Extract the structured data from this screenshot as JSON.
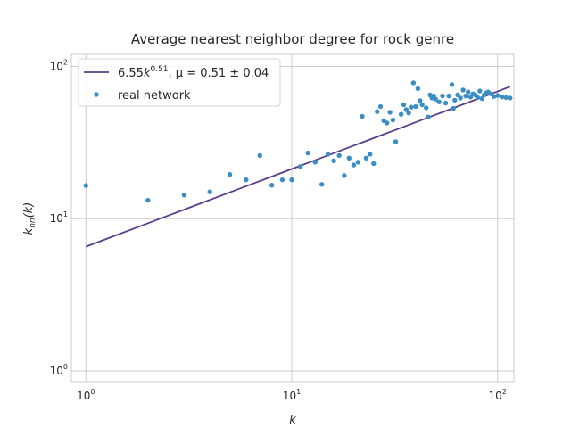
{
  "chart_data": {
    "type": "scatter",
    "title": "Average nearest neighbor degree for rock genre",
    "xlabel": "k",
    "ylabel": "k_nn(k)",
    "xscale": "log",
    "yscale": "log",
    "xlim": [
      0.85,
      120
    ],
    "ylim": [
      0.85,
      120
    ],
    "grid": true,
    "legend_position": "top-left",
    "x_ticks": [
      {
        "value": 1,
        "base": "10",
        "exp": "0"
      },
      {
        "value": 10,
        "base": "10",
        "exp": "1"
      },
      {
        "value": 100,
        "base": "10",
        "exp": "2"
      }
    ],
    "y_ticks": [
      {
        "value": 1,
        "base": "10",
        "exp": "0"
      },
      {
        "value": 10,
        "base": "10",
        "exp": "1"
      },
      {
        "value": 100,
        "base": "10",
        "exp": "2"
      }
    ],
    "series": [
      {
        "name": "real network",
        "kind": "scatter",
        "color": "#3a8ec3",
        "points": [
          [
            1,
            16.5
          ],
          [
            2,
            13.2
          ],
          [
            3,
            14.3
          ],
          [
            4,
            15.0
          ],
          [
            5,
            19.5
          ],
          [
            6,
            18.0
          ],
          [
            7,
            26.0
          ],
          [
            8,
            16.6
          ],
          [
            9,
            18.0
          ],
          [
            10,
            18.0
          ],
          [
            11,
            22.0
          ],
          [
            12,
            27.0
          ],
          [
            13,
            23.5
          ],
          [
            14,
            16.8
          ],
          [
            15,
            26.5
          ],
          [
            16,
            24.0
          ],
          [
            17,
            26.0
          ],
          [
            18,
            19.2
          ],
          [
            19,
            25.0
          ],
          [
            20,
            22.5
          ],
          [
            21,
            23.5
          ],
          [
            22,
            47.0
          ],
          [
            23,
            25.0
          ],
          [
            24,
            26.5
          ],
          [
            25,
            23.0
          ],
          [
            26,
            50.5
          ],
          [
            27,
            54.5
          ],
          [
            28,
            44.0
          ],
          [
            29,
            42.5
          ],
          [
            30,
            50.0
          ],
          [
            31,
            44.5
          ],
          [
            32,
            32.0
          ],
          [
            34,
            48.5
          ],
          [
            35,
            56.0
          ],
          [
            36,
            52.0
          ],
          [
            37,
            49.5
          ],
          [
            38,
            54.0
          ],
          [
            39,
            78.0
          ],
          [
            40,
            54.5
          ],
          [
            41,
            71.5
          ],
          [
            42,
            59.5
          ],
          [
            43,
            56.0
          ],
          [
            45,
            53.5
          ],
          [
            46,
            46.5
          ],
          [
            47,
            65.0
          ],
          [
            48,
            62.0
          ],
          [
            49,
            64.0
          ],
          [
            50,
            61.0
          ],
          [
            52,
            58.5
          ],
          [
            54,
            64.0
          ],
          [
            56,
            57.5
          ],
          [
            58,
            64.0
          ],
          [
            60,
            76.0
          ],
          [
            61,
            53.0
          ],
          [
            62,
            60.0
          ],
          [
            64,
            65.0
          ],
          [
            66,
            62.0
          ],
          [
            68,
            70.0
          ],
          [
            70,
            64.0
          ],
          [
            72,
            68.0
          ],
          [
            74,
            63.0
          ],
          [
            76,
            66.0
          ],
          [
            78,
            65.0
          ],
          [
            80,
            62.5
          ],
          [
            82,
            69.0
          ],
          [
            84,
            61.5
          ],
          [
            86,
            65.0
          ],
          [
            88,
            67.0
          ],
          [
            90,
            68.0
          ],
          [
            93,
            66.0
          ],
          [
            96,
            63.5
          ],
          [
            100,
            64.5
          ],
          [
            105,
            63.0
          ],
          [
            110,
            62.5
          ],
          [
            115,
            62.0
          ]
        ]
      },
      {
        "name": "6.55k^{0.51}, μ = 0.51 ± 0.04",
        "kind": "line",
        "color": "#5a3d8a",
        "coefficient": 6.55,
        "exponent": 0.51,
        "x_range": [
          1,
          115
        ]
      }
    ],
    "legend": [
      {
        "kind": "line",
        "coef": "6.55",
        "var": "k",
        "exp": "0.51",
        "mu_text": ", μ = 0.51 ± 0.04"
      },
      {
        "kind": "scatter",
        "label": "real network"
      }
    ]
  }
}
